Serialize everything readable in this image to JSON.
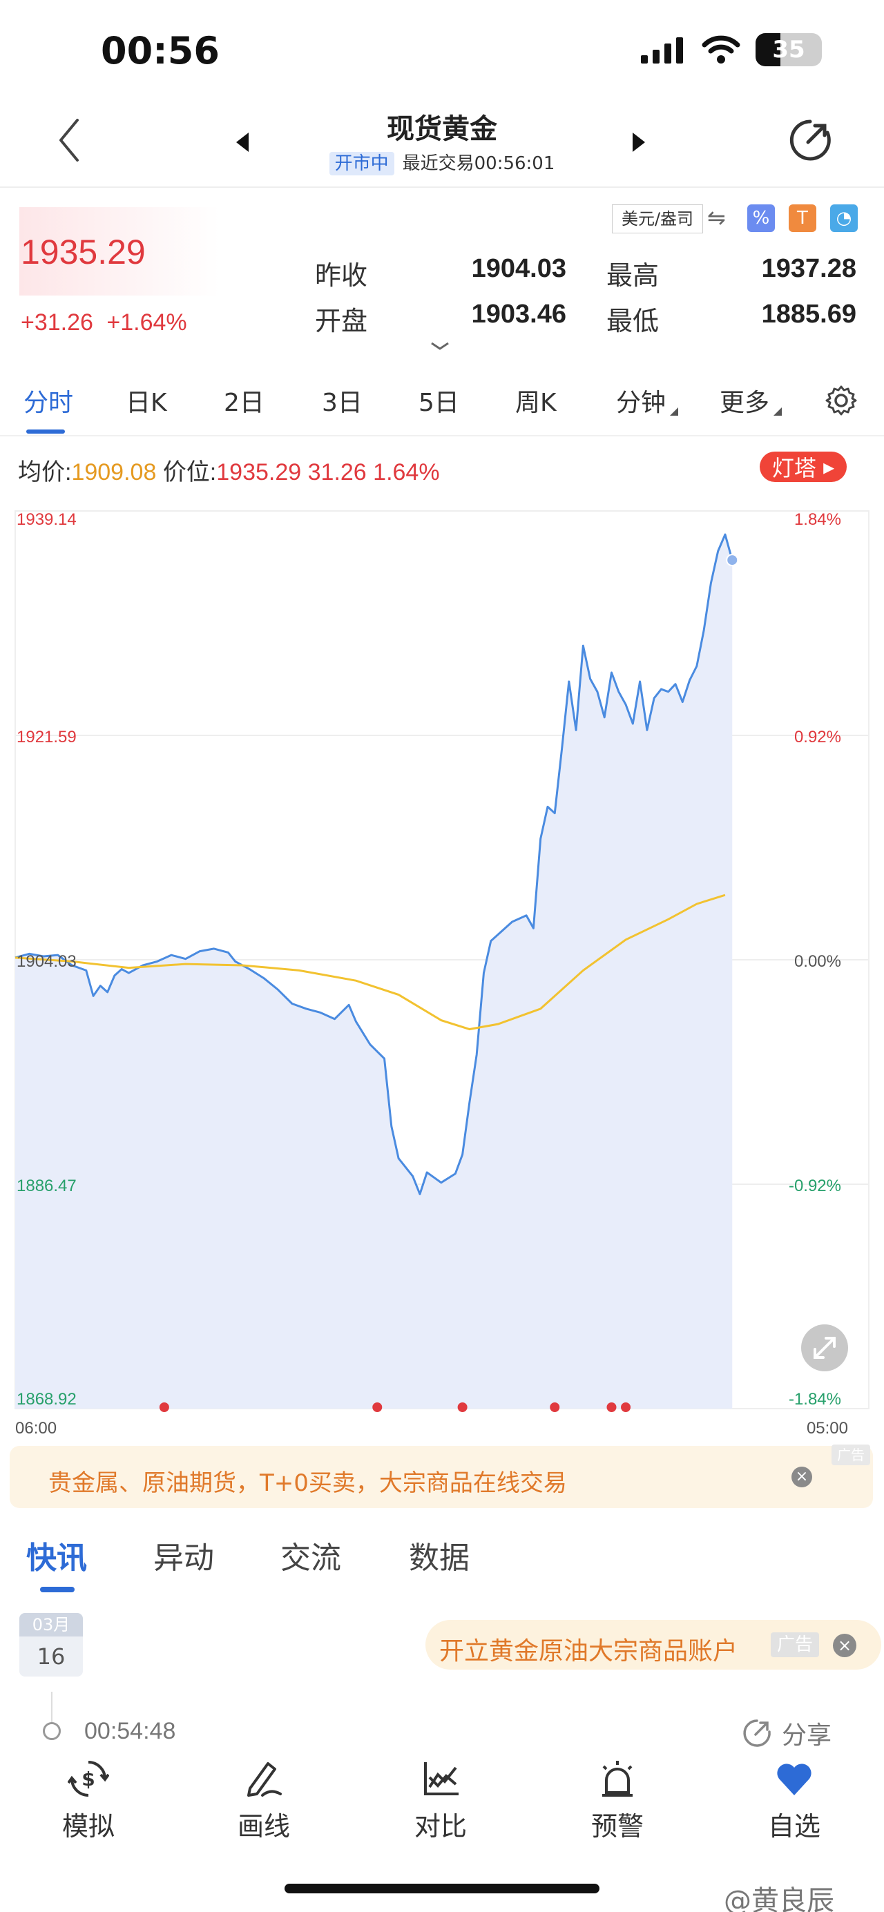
{
  "status_bar": {
    "time": "00:56",
    "battery": "35"
  },
  "header": {
    "title": "现货黄金",
    "status_badge": "开市中",
    "last_trade": "最近交易00:56:01"
  },
  "quote": {
    "price": "1935.29",
    "change": "+31.26",
    "change_pct": "+1.64%",
    "unit": "美元/盎司",
    "stats": [
      {
        "label": "昨收",
        "value": "1904.03"
      },
      {
        "label": "最高",
        "value": "1937.28"
      },
      {
        "label": "开盘",
        "value": "1903.46"
      },
      {
        "label": "最低",
        "value": "1885.69"
      }
    ]
  },
  "period_tabs": [
    "分时",
    "日K",
    "2日",
    "3日",
    "5日",
    "周K",
    "分钟",
    "更多"
  ],
  "info_line": {
    "avg_label": "均价:",
    "avg_value": "1909.08",
    "price_label": "价位:",
    "price_value": "1935.29",
    "change": "31.26",
    "pct": "1.64%",
    "lighthouse": "灯塔"
  },
  "colors": {
    "up": "#e0393e",
    "down": "#27a06b",
    "accent": "#2d6bd6",
    "avg_line": "#f2c230",
    "price_line": "#4a8be0"
  },
  "chart_data": {
    "type": "line",
    "y_ticks_left": [
      "1939.14",
      "1921.59",
      "1904.03",
      "1886.47",
      "1868.92"
    ],
    "y_ticks_right": [
      "1.84%",
      "0.92%",
      "0.00%",
      "-0.92%",
      "-1.84%"
    ],
    "x_ticks": [
      "06:00",
      "05:00"
    ],
    "ylim": [
      1868.92,
      1939.14
    ],
    "x_range_fraction_filled": 0.84,
    "series": [
      {
        "role": "price",
        "points": [
          [
            0,
            1904.2
          ],
          [
            0.02,
            1904.5
          ],
          [
            0.04,
            1904.3
          ],
          [
            0.06,
            1904.4
          ],
          [
            0.08,
            1903.6
          ],
          [
            0.1,
            1903.2
          ],
          [
            0.11,
            1901.2
          ],
          [
            0.12,
            1902.0
          ],
          [
            0.13,
            1901.5
          ],
          [
            0.14,
            1902.8
          ],
          [
            0.15,
            1903.3
          ],
          [
            0.16,
            1903.0
          ],
          [
            0.18,
            1903.6
          ],
          [
            0.2,
            1903.9
          ],
          [
            0.22,
            1904.4
          ],
          [
            0.24,
            1904.1
          ],
          [
            0.26,
            1904.7
          ],
          [
            0.28,
            1904.9
          ],
          [
            0.3,
            1904.6
          ],
          [
            0.31,
            1903.9
          ],
          [
            0.33,
            1903.3
          ],
          [
            0.35,
            1902.6
          ],
          [
            0.37,
            1901.7
          ],
          [
            0.39,
            1900.6
          ],
          [
            0.41,
            1900.2
          ],
          [
            0.43,
            1899.9
          ],
          [
            0.45,
            1899.4
          ],
          [
            0.47,
            1900.5
          ],
          [
            0.48,
            1899.2
          ],
          [
            0.5,
            1897.4
          ],
          [
            0.52,
            1896.3
          ],
          [
            0.53,
            1891.0
          ],
          [
            0.54,
            1888.5
          ],
          [
            0.56,
            1887.1
          ],
          [
            0.57,
            1885.7
          ],
          [
            0.58,
            1887.4
          ],
          [
            0.6,
            1886.6
          ],
          [
            0.62,
            1887.3
          ],
          [
            0.63,
            1888.8
          ],
          [
            0.64,
            1892.9
          ],
          [
            0.65,
            1896.6
          ],
          [
            0.66,
            1903.0
          ],
          [
            0.67,
            1905.5
          ],
          [
            0.68,
            1906.0
          ],
          [
            0.7,
            1907.0
          ],
          [
            0.72,
            1907.5
          ],
          [
            0.73,
            1906.5
          ],
          [
            0.74,
            1913.5
          ],
          [
            0.75,
            1916.0
          ],
          [
            0.76,
            1915.5
          ],
          [
            0.77,
            1920.5
          ],
          [
            0.78,
            1925.8
          ],
          [
            0.79,
            1922.0
          ],
          [
            0.8,
            1928.6
          ],
          [
            0.81,
            1926.0
          ],
          [
            0.82,
            1925.0
          ],
          [
            0.83,
            1923.0
          ],
          [
            0.84,
            1926.5
          ],
          [
            0.85,
            1925.0
          ],
          [
            0.86,
            1924.0
          ],
          [
            0.87,
            1922.5
          ],
          [
            0.88,
            1925.8
          ],
          [
            0.89,
            1922.0
          ],
          [
            0.9,
            1924.5
          ],
          [
            0.91,
            1925.2
          ],
          [
            0.92,
            1925.0
          ],
          [
            0.93,
            1925.6
          ],
          [
            0.94,
            1924.2
          ],
          [
            0.95,
            1925.9
          ],
          [
            0.96,
            1927.0
          ],
          [
            0.97,
            1929.8
          ],
          [
            0.98,
            1933.5
          ],
          [
            0.99,
            1936.0
          ],
          [
            1.0,
            1937.3
          ],
          [
            1.01,
            1935.3
          ]
        ]
      },
      {
        "role": "average",
        "points": [
          [
            0,
            1904.2
          ],
          [
            0.08,
            1903.9
          ],
          [
            0.16,
            1903.4
          ],
          [
            0.24,
            1903.7
          ],
          [
            0.32,
            1903.6
          ],
          [
            0.4,
            1903.2
          ],
          [
            0.48,
            1902.4
          ],
          [
            0.54,
            1901.3
          ],
          [
            0.6,
            1899.3
          ],
          [
            0.64,
            1898.6
          ],
          [
            0.68,
            1899.0
          ],
          [
            0.74,
            1900.2
          ],
          [
            0.8,
            1903.2
          ],
          [
            0.86,
            1905.6
          ],
          [
            0.92,
            1907.2
          ],
          [
            0.96,
            1908.4
          ],
          [
            1.0,
            1909.1
          ]
        ]
      }
    ],
    "event_markers_fraction": [
      0.21,
      0.51,
      0.63,
      0.76,
      0.84,
      0.86
    ]
  },
  "ad_banner": {
    "text": "贵金属、原油期货，T+0买卖，大宗商品在线交易",
    "tag": "广告",
    "close": "×"
  },
  "news_tabs": [
    "快讯",
    "异动",
    "交流",
    "数据"
  ],
  "news": {
    "month": "03月",
    "day": "16",
    "ad_text": "开立黄金原油大宗商品账户",
    "ad_tag": "广告",
    "ad_close": "×",
    "time": "00:54:48",
    "share": "分享"
  },
  "bottom_nav": [
    {
      "label": "模拟",
      "icon": "dollar-cycle-icon"
    },
    {
      "label": "画线",
      "icon": "pen-icon"
    },
    {
      "label": "对比",
      "icon": "compare-chart-icon"
    },
    {
      "label": "预警",
      "icon": "alarm-icon"
    },
    {
      "label": "自选",
      "icon": "heart-icon"
    }
  ],
  "watermark": "@黄良辰"
}
